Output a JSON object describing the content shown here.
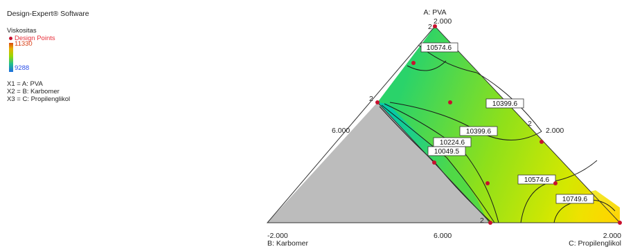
{
  "software": "Design-Expert® Software",
  "response": "Viskositas",
  "design_points_label": "Design Points",
  "scale": {
    "high": "11330",
    "low": "9288"
  },
  "factors": [
    "X1 = A: PVA",
    "X2 = B: Karbomer",
    "X3 = C: Propilenglikol"
  ],
  "colors": {
    "design_point": "#c8102e",
    "infeasible": "#bcbcbc"
  },
  "chart_data": {
    "type": "heatmap",
    "subtype": "mixture-contour",
    "axes": {
      "top": "A: PVA",
      "left": "B: Karbomer",
      "right": "C: Propilenglikol"
    },
    "tick_labels": {
      "apex_top": "2.000",
      "bottom_left": "-2.000",
      "bottom_mid": "6.000",
      "bottom_right": "2.000",
      "left_edge": "6.000",
      "right_edge": "2.000"
    },
    "contours": [
      {
        "label": "10574.6",
        "value": 10574.6
      },
      {
        "label": "10399.6",
        "value": 10399.6
      },
      {
        "label": "10399.6",
        "value": 10399.6
      },
      {
        "label": "10224.6",
        "value": 10224.6
      },
      {
        "label": "10049.5",
        "value": 10049.5
      },
      {
        "label": "10574.6",
        "value": 10574.6
      },
      {
        "label": "10749.6",
        "value": 10749.6
      }
    ],
    "replicate_markers": [
      "2",
      "2",
      "2",
      "2"
    ]
  }
}
